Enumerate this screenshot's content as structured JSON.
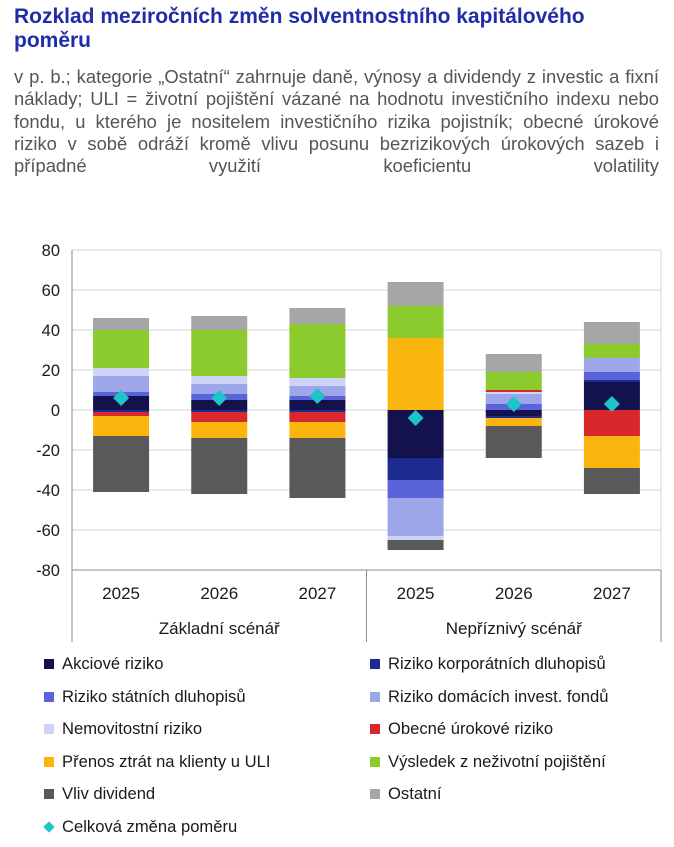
{
  "title": "Rozklad meziročních změn solventnostního kapitálového poměru",
  "subtitle": "v p. b.; kategorie „Ostatní“ zahrnuje daně, výnosy a dividendy z investic a fixní náklady; ULI = životní pojištění vázané na hodnotu investičního indexu nebo fondu, u kterého je nositelem investičního rizika pojistník; obecné úrokové riziko v sobě odráží kromě vlivu posunu bezrizikových úrokových sazeb i případné využití koeficientu volatility",
  "chart_data": {
    "type": "bar",
    "stacked": true,
    "ylim": [
      -80,
      80
    ],
    "yticks": [
      -80,
      -60,
      -40,
      -20,
      0,
      20,
      40,
      60,
      80
    ],
    "grid": true,
    "categories": [
      "2025",
      "2026",
      "2027",
      "2025",
      "2026",
      "2027"
    ],
    "groups": [
      {
        "label": "Základní scénář",
        "span": 3
      },
      {
        "label": "Nepříznivý scénář",
        "span": 3
      }
    ],
    "series": [
      {
        "name": "Akciové riziko",
        "color": "#14124e",
        "values": [
          7,
          5,
          5,
          -24,
          -3,
          14
        ]
      },
      {
        "name": "Riziko korporátních dluhopisů",
        "color": "#1d2a8f",
        "values": [
          -1,
          -1,
          -1,
          -11,
          -1,
          1
        ]
      },
      {
        "name": "Riziko státních dluhopisů",
        "color": "#5b63d8",
        "values": [
          2,
          3,
          2,
          -9,
          3,
          4
        ]
      },
      {
        "name": "Riziko domácích invest. fondů",
        "color": "#9ea6ea",
        "values": [
          8,
          5,
          5,
          -19,
          5,
          7
        ]
      },
      {
        "name": "Nemovitostní riziko",
        "color": "#cfd3f6",
        "values": [
          4,
          4,
          4,
          -2,
          1,
          0
        ]
      },
      {
        "name": "Obecné úrokové riziko",
        "color": "#d8282c",
        "values": [
          -2,
          -5,
          -5,
          0,
          1,
          -13
        ]
      },
      {
        "name": "Přenos ztrát na klienty u ULI",
        "color": "#fbb50f",
        "values": [
          -10,
          -8,
          -8,
          36,
          -4,
          -16
        ]
      },
      {
        "name": "Výsledek z neživotní pojištění",
        "color": "#8ccb2e",
        "values": [
          19,
          23,
          27,
          16,
          9,
          7
        ]
      },
      {
        "name": "Vliv dividend",
        "color": "#595959",
        "values": [
          -28,
          -28,
          -30,
          -5,
          -16,
          -13
        ]
      },
      {
        "name": "Ostatní",
        "color": "#a6a6a6",
        "values": [
          6,
          7,
          8,
          12,
          9,
          11
        ]
      }
    ],
    "total_series": {
      "name": "Celková změna poměru",
      "color": "#1fc4c8",
      "values": [
        6,
        6,
        7,
        -4,
        3,
        3
      ]
    }
  }
}
